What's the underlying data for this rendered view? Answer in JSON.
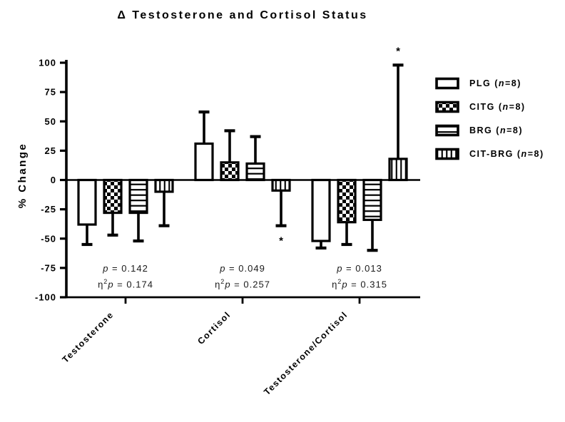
{
  "title": "Δ Testosterone and Cortisol Status",
  "y_axis_label": "% Change",
  "legend": {
    "items": [
      {
        "name": "PLG",
        "pre": "(",
        "nvar": "n",
        "post": "=8)"
      },
      {
        "name": "CITG",
        "pre": "(",
        "nvar": "n",
        "post": "=8)"
      },
      {
        "name": "BRG",
        "pre": "(",
        "nvar": "n",
        "post": "=8)"
      },
      {
        "name": "CIT-BRG",
        "pre": "(",
        "nvar": "n",
        "post": "=8)"
      }
    ]
  },
  "annotations": [
    {
      "p_symbol": "p",
      "equals": "=",
      "p_value": "0.142",
      "eta_symbol": "η",
      "eta_sup": "2",
      "eta_p_symbol": "p",
      "eta_equals": "=",
      "eta_value": "0.174"
    },
    {
      "p_symbol": "p",
      "equals": "=",
      "p_value": "0.049",
      "eta_symbol": "η",
      "eta_sup": "2",
      "eta_p_symbol": "p",
      "eta_equals": "=",
      "eta_value": "0.257"
    },
    {
      "p_symbol": "p",
      "equals": "=",
      "p_value": "0.013",
      "eta_symbol": "η",
      "eta_sup": "2",
      "eta_p_symbol": "p",
      "eta_equals": "=",
      "eta_value": "0.315"
    }
  ],
  "chart_data": {
    "type": "bar",
    "title": "Δ Testosterone and Cortisol Status",
    "xlabel": "",
    "ylabel": "% Change",
    "ylim": [
      -100,
      100
    ],
    "yticks": [
      100,
      75,
      50,
      25,
      0,
      -25,
      -50,
      -75,
      -100
    ],
    "grid": false,
    "legend_position": "right",
    "categories": [
      "Testosterone",
      "Cortisol",
      "Testosterone/Cortisol"
    ],
    "series": [
      {
        "name": "PLG",
        "n": 8,
        "pattern": "solid-white",
        "values": [
          -38,
          31,
          -52
        ],
        "errors": [
          17,
          27,
          6
        ]
      },
      {
        "name": "CITG",
        "n": 8,
        "pattern": "checker",
        "values": [
          -28,
          15,
          -36
        ],
        "errors": [
          19,
          27,
          19
        ]
      },
      {
        "name": "BRG",
        "n": 8,
        "pattern": "hlines",
        "values": [
          -28,
          14,
          -34
        ],
        "errors": [
          24,
          23,
          26
        ]
      },
      {
        "name": "CIT-BRG",
        "n": 8,
        "pattern": "vlines",
        "values": [
          -10,
          -9,
          18
        ],
        "errors": [
          29,
          30,
          80
        ]
      }
    ],
    "significance": [
      {
        "category_index": 1,
        "series_index": 3,
        "marker": "*",
        "placement": "below"
      },
      {
        "category_index": 2,
        "series_index": 3,
        "marker": "*",
        "placement": "above"
      }
    ],
    "stats_annotations": [
      {
        "category": "Testosterone",
        "p": 0.142,
        "eta_squared_p": 0.174
      },
      {
        "category": "Cortisol",
        "p": 0.049,
        "eta_squared_p": 0.257
      },
      {
        "category": "Testosterone/Cortisol",
        "p": 0.013,
        "eta_squared_p": 0.315
      }
    ],
    "colors": {
      "bar_stroke": "#000000",
      "bar_fill": "#ffffff",
      "background": "#ffffff",
      "annotation_text": "#1a1a1a"
    }
  }
}
